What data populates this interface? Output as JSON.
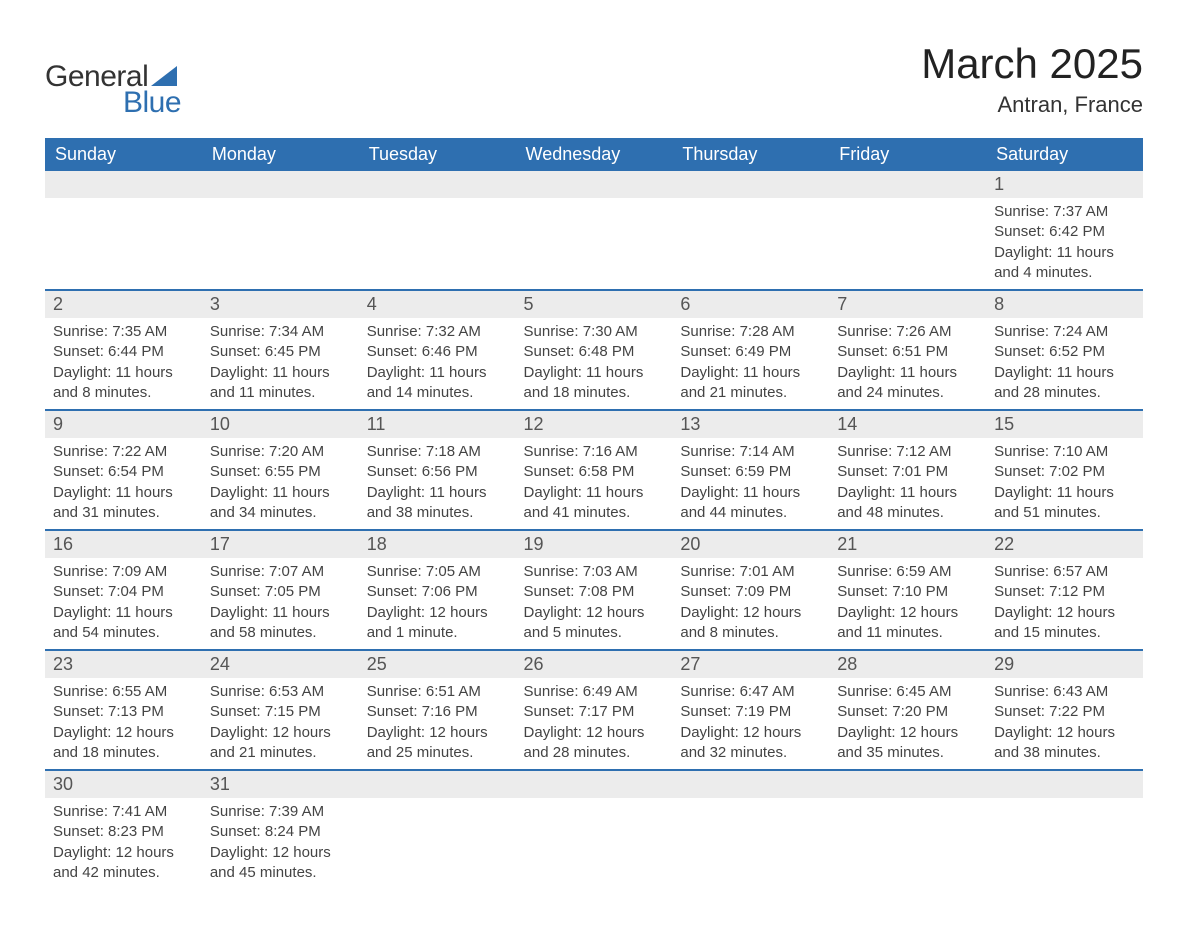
{
  "logo": {
    "text_general": "General",
    "text_blue": "Blue",
    "shape_color": "#2e6fb0"
  },
  "header": {
    "month_title": "March 2025",
    "location": "Antran, France"
  },
  "colors": {
    "header_bg": "#2e6fb0",
    "header_text": "#ffffff",
    "daynum_bg": "#ececec",
    "daynum_text": "#555555",
    "body_text": "#444444",
    "row_border": "#2e6fb0"
  },
  "weekdays": [
    "Sunday",
    "Monday",
    "Tuesday",
    "Wednesday",
    "Thursday",
    "Friday",
    "Saturday"
  ],
  "weeks": [
    [
      null,
      null,
      null,
      null,
      null,
      null,
      {
        "day": "1",
        "sunrise": "Sunrise: 7:37 AM",
        "sunset": "Sunset: 6:42 PM",
        "daylight": "Daylight: 11 hours and 4 minutes."
      }
    ],
    [
      {
        "day": "2",
        "sunrise": "Sunrise: 7:35 AM",
        "sunset": "Sunset: 6:44 PM",
        "daylight": "Daylight: 11 hours and 8 minutes."
      },
      {
        "day": "3",
        "sunrise": "Sunrise: 7:34 AM",
        "sunset": "Sunset: 6:45 PM",
        "daylight": "Daylight: 11 hours and 11 minutes."
      },
      {
        "day": "4",
        "sunrise": "Sunrise: 7:32 AM",
        "sunset": "Sunset: 6:46 PM",
        "daylight": "Daylight: 11 hours and 14 minutes."
      },
      {
        "day": "5",
        "sunrise": "Sunrise: 7:30 AM",
        "sunset": "Sunset: 6:48 PM",
        "daylight": "Daylight: 11 hours and 18 minutes."
      },
      {
        "day": "6",
        "sunrise": "Sunrise: 7:28 AM",
        "sunset": "Sunset: 6:49 PM",
        "daylight": "Daylight: 11 hours and 21 minutes."
      },
      {
        "day": "7",
        "sunrise": "Sunrise: 7:26 AM",
        "sunset": "Sunset: 6:51 PM",
        "daylight": "Daylight: 11 hours and 24 minutes."
      },
      {
        "day": "8",
        "sunrise": "Sunrise: 7:24 AM",
        "sunset": "Sunset: 6:52 PM",
        "daylight": "Daylight: 11 hours and 28 minutes."
      }
    ],
    [
      {
        "day": "9",
        "sunrise": "Sunrise: 7:22 AM",
        "sunset": "Sunset: 6:54 PM",
        "daylight": "Daylight: 11 hours and 31 minutes."
      },
      {
        "day": "10",
        "sunrise": "Sunrise: 7:20 AM",
        "sunset": "Sunset: 6:55 PM",
        "daylight": "Daylight: 11 hours and 34 minutes."
      },
      {
        "day": "11",
        "sunrise": "Sunrise: 7:18 AM",
        "sunset": "Sunset: 6:56 PM",
        "daylight": "Daylight: 11 hours and 38 minutes."
      },
      {
        "day": "12",
        "sunrise": "Sunrise: 7:16 AM",
        "sunset": "Sunset: 6:58 PM",
        "daylight": "Daylight: 11 hours and 41 minutes."
      },
      {
        "day": "13",
        "sunrise": "Sunrise: 7:14 AM",
        "sunset": "Sunset: 6:59 PM",
        "daylight": "Daylight: 11 hours and 44 minutes."
      },
      {
        "day": "14",
        "sunrise": "Sunrise: 7:12 AM",
        "sunset": "Sunset: 7:01 PM",
        "daylight": "Daylight: 11 hours and 48 minutes."
      },
      {
        "day": "15",
        "sunrise": "Sunrise: 7:10 AM",
        "sunset": "Sunset: 7:02 PM",
        "daylight": "Daylight: 11 hours and 51 minutes."
      }
    ],
    [
      {
        "day": "16",
        "sunrise": "Sunrise: 7:09 AM",
        "sunset": "Sunset: 7:04 PM",
        "daylight": "Daylight: 11 hours and 54 minutes."
      },
      {
        "day": "17",
        "sunrise": "Sunrise: 7:07 AM",
        "sunset": "Sunset: 7:05 PM",
        "daylight": "Daylight: 11 hours and 58 minutes."
      },
      {
        "day": "18",
        "sunrise": "Sunrise: 7:05 AM",
        "sunset": "Sunset: 7:06 PM",
        "daylight": "Daylight: 12 hours and 1 minute."
      },
      {
        "day": "19",
        "sunrise": "Sunrise: 7:03 AM",
        "sunset": "Sunset: 7:08 PM",
        "daylight": "Daylight: 12 hours and 5 minutes."
      },
      {
        "day": "20",
        "sunrise": "Sunrise: 7:01 AM",
        "sunset": "Sunset: 7:09 PM",
        "daylight": "Daylight: 12 hours and 8 minutes."
      },
      {
        "day": "21",
        "sunrise": "Sunrise: 6:59 AM",
        "sunset": "Sunset: 7:10 PM",
        "daylight": "Daylight: 12 hours and 11 minutes."
      },
      {
        "day": "22",
        "sunrise": "Sunrise: 6:57 AM",
        "sunset": "Sunset: 7:12 PM",
        "daylight": "Daylight: 12 hours and 15 minutes."
      }
    ],
    [
      {
        "day": "23",
        "sunrise": "Sunrise: 6:55 AM",
        "sunset": "Sunset: 7:13 PM",
        "daylight": "Daylight: 12 hours and 18 minutes."
      },
      {
        "day": "24",
        "sunrise": "Sunrise: 6:53 AM",
        "sunset": "Sunset: 7:15 PM",
        "daylight": "Daylight: 12 hours and 21 minutes."
      },
      {
        "day": "25",
        "sunrise": "Sunrise: 6:51 AM",
        "sunset": "Sunset: 7:16 PM",
        "daylight": "Daylight: 12 hours and 25 minutes."
      },
      {
        "day": "26",
        "sunrise": "Sunrise: 6:49 AM",
        "sunset": "Sunset: 7:17 PM",
        "daylight": "Daylight: 12 hours and 28 minutes."
      },
      {
        "day": "27",
        "sunrise": "Sunrise: 6:47 AM",
        "sunset": "Sunset: 7:19 PM",
        "daylight": "Daylight: 12 hours and 32 minutes."
      },
      {
        "day": "28",
        "sunrise": "Sunrise: 6:45 AM",
        "sunset": "Sunset: 7:20 PM",
        "daylight": "Daylight: 12 hours and 35 minutes."
      },
      {
        "day": "29",
        "sunrise": "Sunrise: 6:43 AM",
        "sunset": "Sunset: 7:22 PM",
        "daylight": "Daylight: 12 hours and 38 minutes."
      }
    ],
    [
      {
        "day": "30",
        "sunrise": "Sunrise: 7:41 AM",
        "sunset": "Sunset: 8:23 PM",
        "daylight": "Daylight: 12 hours and 42 minutes."
      },
      {
        "day": "31",
        "sunrise": "Sunrise: 7:39 AM",
        "sunset": "Sunset: 8:24 PM",
        "daylight": "Daylight: 12 hours and 45 minutes."
      },
      null,
      null,
      null,
      null,
      null
    ]
  ]
}
